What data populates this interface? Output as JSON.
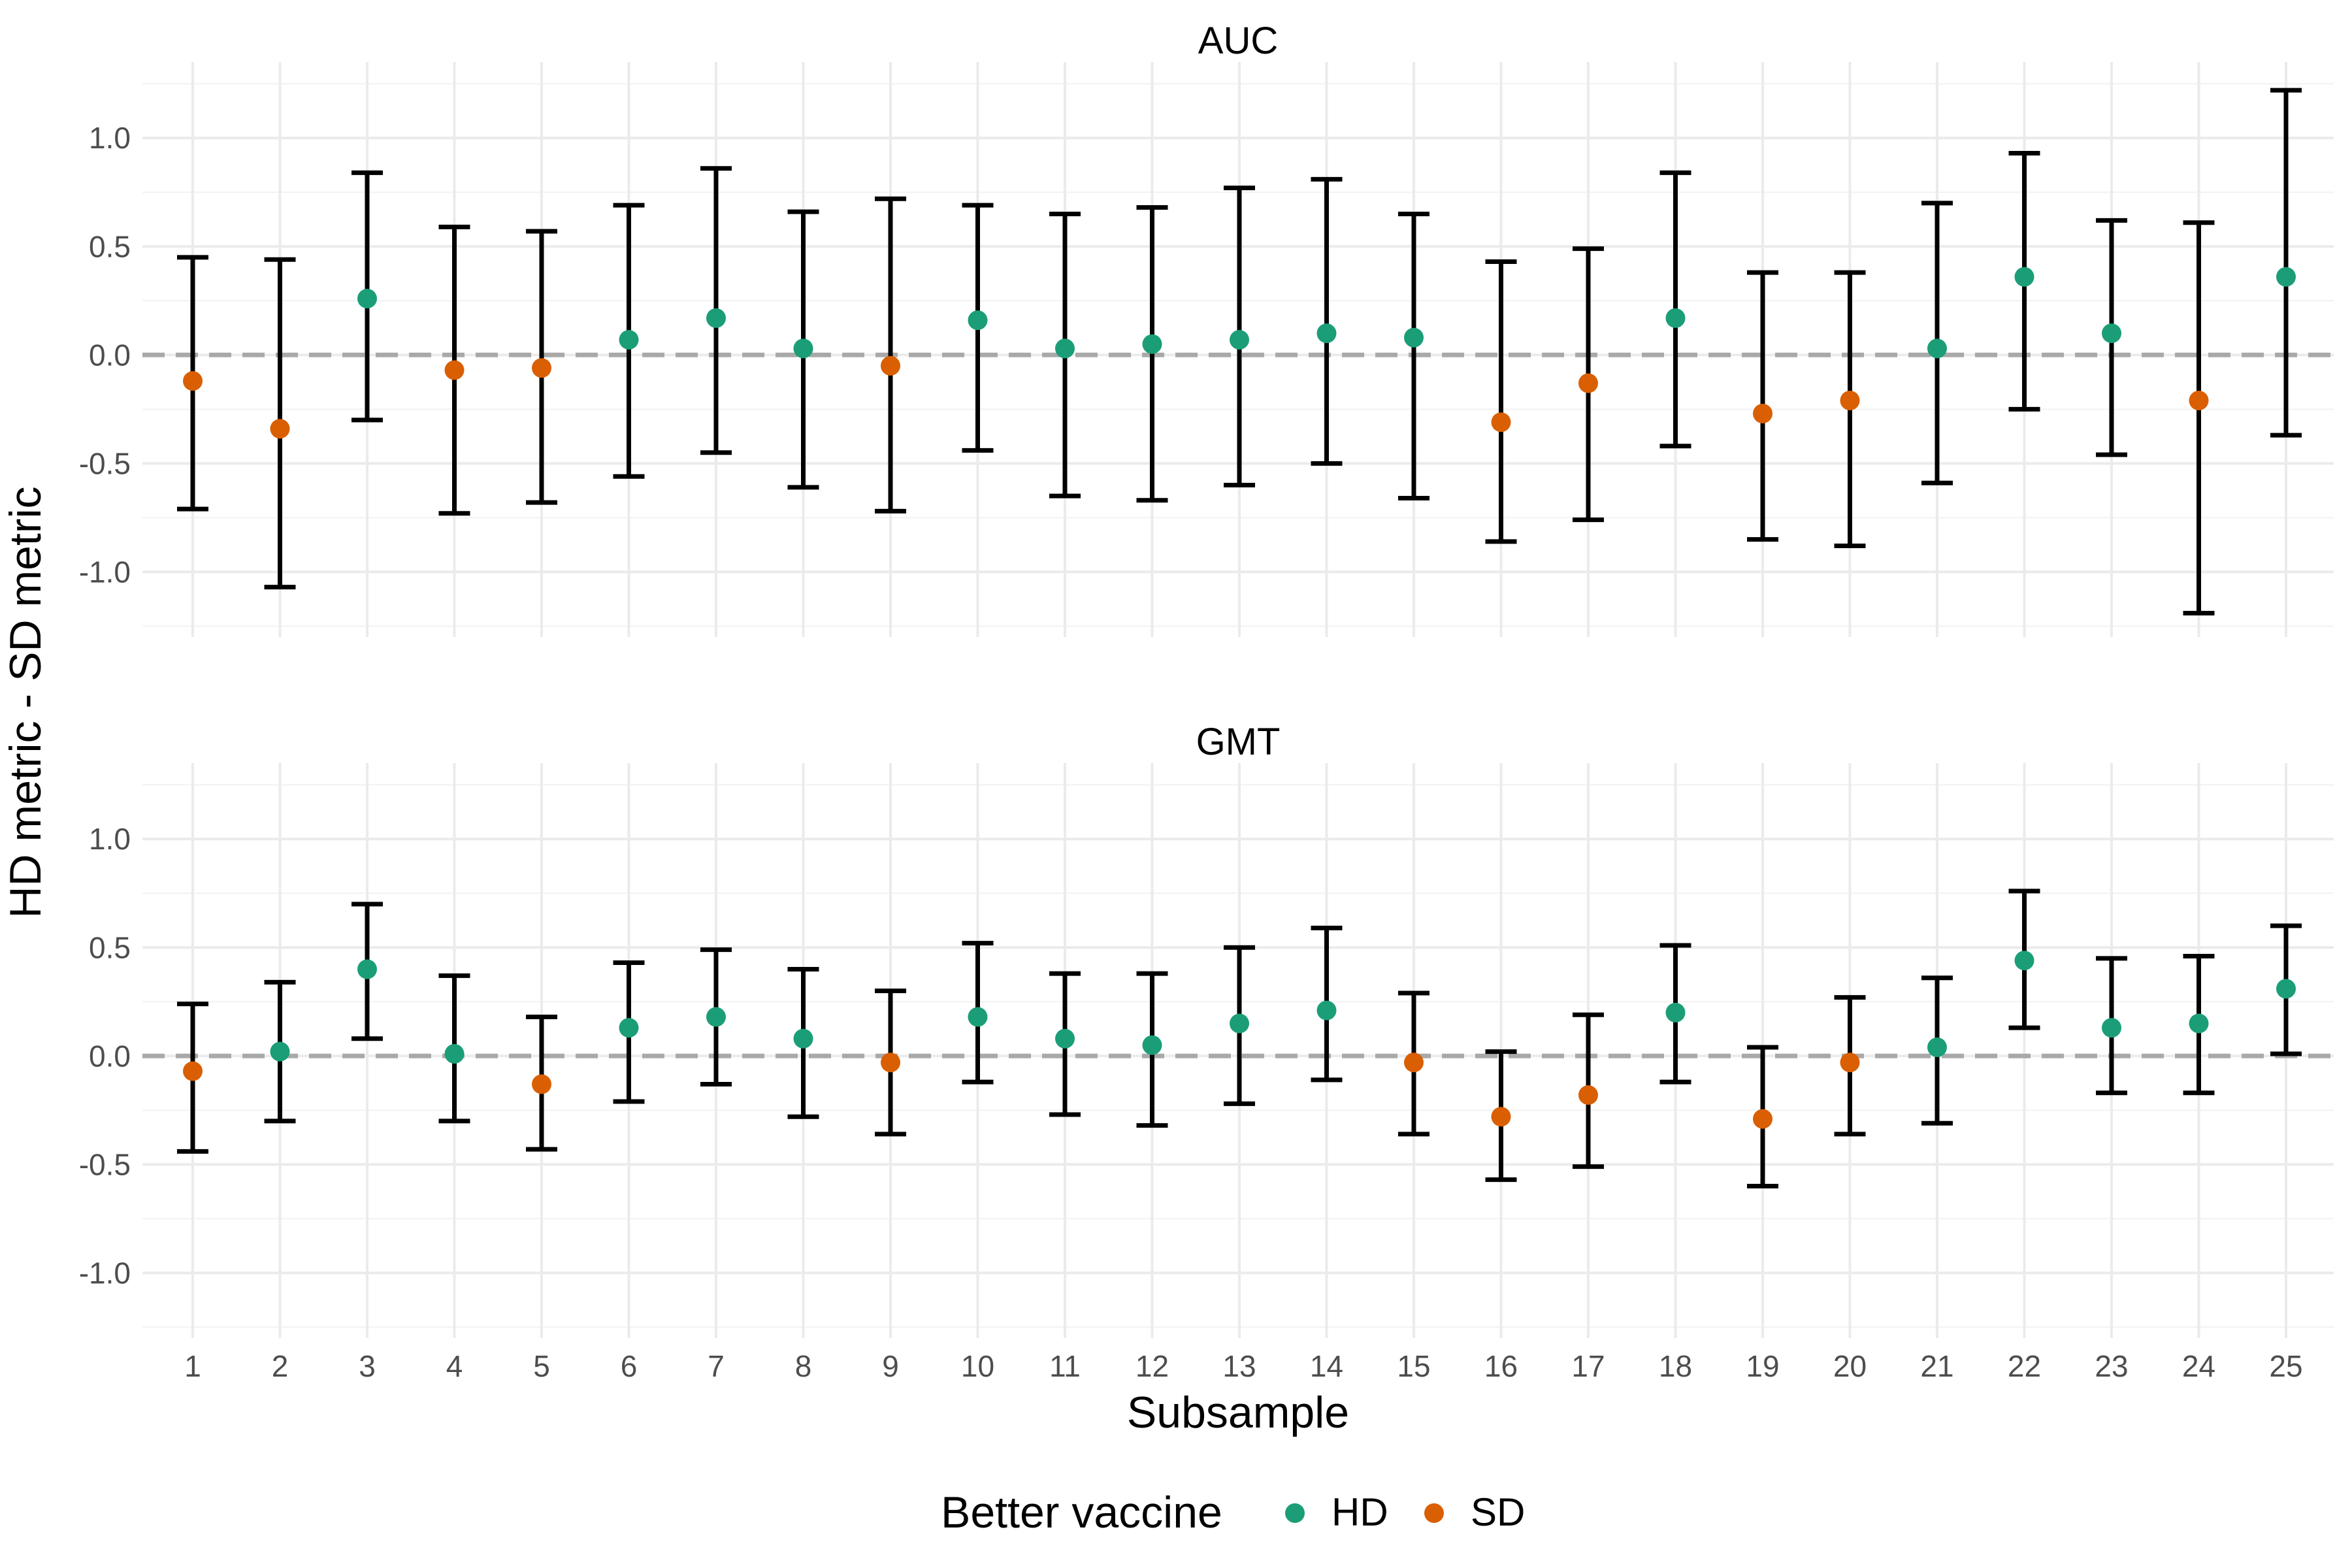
{
  "chart_data": {
    "type": "scatter",
    "xlabel": "Subsample",
    "ylabel": "HD metric - SD metric",
    "x_categories": [
      "1",
      "2",
      "3",
      "4",
      "5",
      "6",
      "7",
      "8",
      "9",
      "10",
      "11",
      "12",
      "13",
      "14",
      "15",
      "16",
      "17",
      "18",
      "19",
      "20",
      "21",
      "22",
      "23",
      "24",
      "25"
    ],
    "ylim": [
      -1.3,
      1.35
    ],
    "y_ticks": [
      -1.0,
      -0.5,
      0.0,
      0.5,
      1.0
    ],
    "y_tick_labels": [
      "-1.0",
      "-0.5",
      "0.0",
      "0.5",
      "1.0"
    ],
    "reference_line": 0.0,
    "grid": true,
    "legend": {
      "title": "Better vaccine",
      "position": "bottom",
      "items": [
        {
          "label": "HD",
          "color": "#1B9E77"
        },
        {
          "label": "SD",
          "color": "#D95F02"
        }
      ]
    },
    "panels": [
      {
        "title": "AUC",
        "points": [
          {
            "x": "1",
            "y": -0.12,
            "lower": -0.71,
            "upper": 0.45,
            "group": "SD"
          },
          {
            "x": "2",
            "y": -0.34,
            "lower": -1.07,
            "upper": 0.44,
            "group": "SD"
          },
          {
            "x": "3",
            "y": 0.26,
            "lower": -0.3,
            "upper": 0.84,
            "group": "HD"
          },
          {
            "x": "4",
            "y": -0.07,
            "lower": -0.73,
            "upper": 0.59,
            "group": "SD"
          },
          {
            "x": "5",
            "y": -0.06,
            "lower": -0.68,
            "upper": 0.57,
            "group": "SD"
          },
          {
            "x": "6",
            "y": 0.07,
            "lower": -0.56,
            "upper": 0.69,
            "group": "HD"
          },
          {
            "x": "7",
            "y": 0.17,
            "lower": -0.45,
            "upper": 0.86,
            "group": "HD"
          },
          {
            "x": "8",
            "y": 0.03,
            "lower": -0.61,
            "upper": 0.66,
            "group": "HD"
          },
          {
            "x": "9",
            "y": -0.05,
            "lower": -0.72,
            "upper": 0.72,
            "group": "SD"
          },
          {
            "x": "10",
            "y": 0.16,
            "lower": -0.44,
            "upper": 0.69,
            "group": "HD"
          },
          {
            "x": "11",
            "y": 0.03,
            "lower": -0.65,
            "upper": 0.65,
            "group": "HD"
          },
          {
            "x": "12",
            "y": 0.05,
            "lower": -0.67,
            "upper": 0.68,
            "group": "HD"
          },
          {
            "x": "13",
            "y": 0.07,
            "lower": -0.6,
            "upper": 0.77,
            "group": "HD"
          },
          {
            "x": "14",
            "y": 0.1,
            "lower": -0.5,
            "upper": 0.81,
            "group": "HD"
          },
          {
            "x": "15",
            "y": 0.08,
            "lower": -0.66,
            "upper": 0.65,
            "group": "HD"
          },
          {
            "x": "16",
            "y": -0.31,
            "lower": -0.86,
            "upper": 0.43,
            "group": "SD"
          },
          {
            "x": "17",
            "y": -0.13,
            "lower": -0.76,
            "upper": 0.49,
            "group": "SD"
          },
          {
            "x": "18",
            "y": 0.17,
            "lower": -0.42,
            "upper": 0.84,
            "group": "HD"
          },
          {
            "x": "19",
            "y": -0.27,
            "lower": -0.85,
            "upper": 0.38,
            "group": "SD"
          },
          {
            "x": "20",
            "y": -0.21,
            "lower": -0.88,
            "upper": 0.38,
            "group": "SD"
          },
          {
            "x": "21",
            "y": 0.03,
            "lower": -0.59,
            "upper": 0.7,
            "group": "HD"
          },
          {
            "x": "22",
            "y": 0.36,
            "lower": -0.25,
            "upper": 0.93,
            "group": "HD"
          },
          {
            "x": "23",
            "y": 0.1,
            "lower": -0.46,
            "upper": 0.62,
            "group": "HD"
          },
          {
            "x": "24",
            "y": -0.21,
            "lower": -1.19,
            "upper": 0.61,
            "group": "SD"
          },
          {
            "x": "25",
            "y": 0.36,
            "lower": -0.37,
            "upper": 1.22,
            "group": "HD"
          }
        ]
      },
      {
        "title": "GMT",
        "points": [
          {
            "x": "1",
            "y": -0.07,
            "lower": -0.44,
            "upper": 0.24,
            "group": "SD"
          },
          {
            "x": "2",
            "y": 0.02,
            "lower": -0.3,
            "upper": 0.34,
            "group": "HD"
          },
          {
            "x": "3",
            "y": 0.4,
            "lower": 0.08,
            "upper": 0.7,
            "group": "HD"
          },
          {
            "x": "4",
            "y": 0.01,
            "lower": -0.3,
            "upper": 0.37,
            "group": "HD"
          },
          {
            "x": "5",
            "y": -0.13,
            "lower": -0.43,
            "upper": 0.18,
            "group": "SD"
          },
          {
            "x": "6",
            "y": 0.13,
            "lower": -0.21,
            "upper": 0.43,
            "group": "HD"
          },
          {
            "x": "7",
            "y": 0.18,
            "lower": -0.13,
            "upper": 0.49,
            "group": "HD"
          },
          {
            "x": "8",
            "y": 0.08,
            "lower": -0.28,
            "upper": 0.4,
            "group": "HD"
          },
          {
            "x": "9",
            "y": -0.03,
            "lower": -0.36,
            "upper": 0.3,
            "group": "SD"
          },
          {
            "x": "10",
            "y": 0.18,
            "lower": -0.12,
            "upper": 0.52,
            "group": "HD"
          },
          {
            "x": "11",
            "y": 0.08,
            "lower": -0.27,
            "upper": 0.38,
            "group": "HD"
          },
          {
            "x": "12",
            "y": 0.05,
            "lower": -0.32,
            "upper": 0.38,
            "group": "HD"
          },
          {
            "x": "13",
            "y": 0.15,
            "lower": -0.22,
            "upper": 0.5,
            "group": "HD"
          },
          {
            "x": "14",
            "y": 0.21,
            "lower": -0.11,
            "upper": 0.59,
            "group": "HD"
          },
          {
            "x": "15",
            "y": -0.03,
            "lower": -0.36,
            "upper": 0.29,
            "group": "SD"
          },
          {
            "x": "16",
            "y": -0.28,
            "lower": -0.57,
            "upper": 0.02,
            "group": "SD"
          },
          {
            "x": "17",
            "y": -0.18,
            "lower": -0.51,
            "upper": 0.19,
            "group": "SD"
          },
          {
            "x": "18",
            "y": 0.2,
            "lower": -0.12,
            "upper": 0.51,
            "group": "HD"
          },
          {
            "x": "19",
            "y": -0.29,
            "lower": -0.6,
            "upper": 0.04,
            "group": "SD"
          },
          {
            "x": "20",
            "y": -0.03,
            "lower": -0.36,
            "upper": 0.27,
            "group": "SD"
          },
          {
            "x": "21",
            "y": 0.04,
            "lower": -0.31,
            "upper": 0.36,
            "group": "HD"
          },
          {
            "x": "22",
            "y": 0.44,
            "lower": 0.13,
            "upper": 0.76,
            "group": "HD"
          },
          {
            "x": "23",
            "y": 0.13,
            "lower": -0.17,
            "upper": 0.45,
            "group": "HD"
          },
          {
            "x": "24",
            "y": 0.15,
            "lower": -0.17,
            "upper": 0.46,
            "group": "HD"
          },
          {
            "x": "25",
            "y": 0.31,
            "lower": 0.01,
            "upper": 0.6,
            "group": "HD"
          }
        ]
      }
    ]
  }
}
